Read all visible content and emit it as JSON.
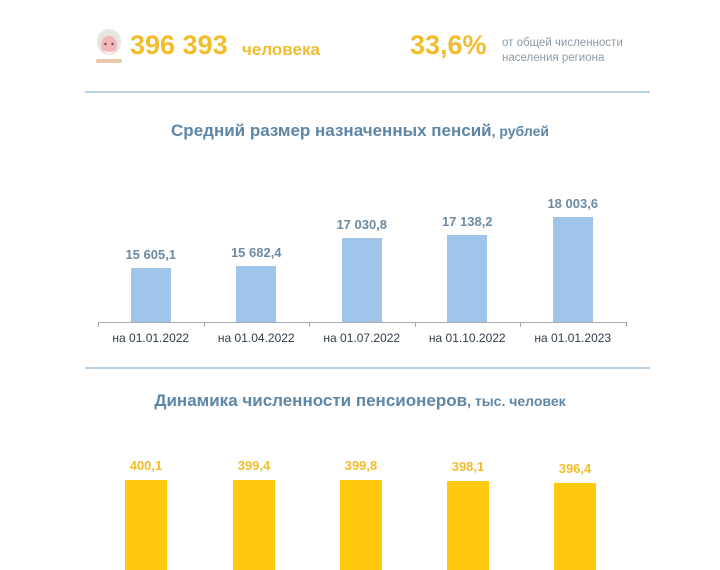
{
  "summary": {
    "pensioners_count": "396 393",
    "pensioners_unit": "человека",
    "share_percent": "33,6%",
    "share_note_line1": "от общей численности",
    "share_note_line2": "населения региона",
    "icon": "elderly-person-icon"
  },
  "colors": {
    "accent_yellow": "#f2bd2c",
    "bar_blue": "#9fc5ea",
    "bar_yellow": "#ffc90e",
    "title_blue": "#5e86a6"
  },
  "chart_data": [
    {
      "type": "bar",
      "title": "Средний размер назначенных пенсий",
      "title_unit": ", рублей",
      "categories": [
        "на 01.01.2022",
        "на 01.04.2022",
        "на 01.07.2022",
        "на 01.10.2022",
        "на 01.01.2023"
      ],
      "values": [
        15605.1,
        15682.4,
        17030.8,
        17138.2,
        18003.6
      ],
      "value_labels": [
        "15 605,1",
        "15 682,4",
        "17 030,8",
        "17 138,2",
        "18 003,6"
      ],
      "ylim": [
        13000,
        19000
      ],
      "grid": false
    },
    {
      "type": "bar",
      "title": "Динамика численности пенсионеров",
      "title_unit": ", тыс. человек",
      "values": [
        400.1,
        399.4,
        399.8,
        398.1,
        396.4
      ],
      "value_labels": [
        "400,1",
        "399,4",
        "399,8",
        "398,1",
        "396,4"
      ],
      "grid": false
    }
  ]
}
